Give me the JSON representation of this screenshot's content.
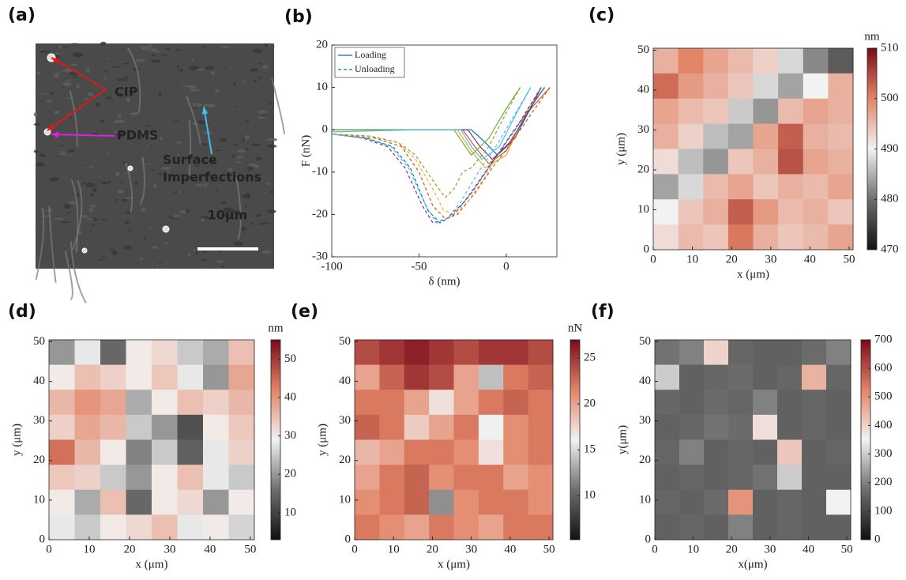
{
  "chart_data": [
    {
      "type": "image",
      "label": "(a)",
      "annotations": [
        {
          "text": "CIP",
          "color": "#e01818"
        },
        {
          "text": "PDMS",
          "color": "#e020e0"
        },
        {
          "text": "Surface",
          "color": "#3cc0f0"
        },
        {
          "text": "Imperfections",
          "color": "#3cc0f0"
        }
      ],
      "scale_bar": "10μm"
    },
    {
      "type": "line",
      "label": "(b)",
      "xlabel": "δ (nm)",
      "ylabel": "F (nN)",
      "xlim": [
        -100,
        29
      ],
      "ylim": [
        -30,
        20
      ],
      "xticks": [
        -100,
        -50,
        0
      ],
      "yticks": [
        -30,
        -20,
        -10,
        0,
        10,
        20
      ],
      "series": [
        {
          "name": "Loading",
          "dash": "solid",
          "curves": [
            {
              "color": "#0072BD",
              "x": [
                -100,
                -50,
                -20,
                -12,
                -5,
                5,
                15,
                22
              ],
              "y": [
                0,
                0,
                0,
                -3,
                -6,
                -2,
                6,
                10
              ]
            },
            {
              "color": "#D95319",
              "x": [
                -100,
                -50,
                -25,
                -18,
                -10,
                0,
                12,
                25
              ],
              "y": [
                0,
                0,
                0,
                -4,
                -8,
                -5,
                4,
                10
              ]
            },
            {
              "color": "#EDB120",
              "x": [
                -100,
                -50,
                -28,
                -20,
                -12,
                0,
                10,
                20
              ],
              "y": [
                0,
                0,
                0,
                -5,
                -9,
                -6,
                3,
                10
              ]
            },
            {
              "color": "#7E2F8E",
              "x": [
                -100,
                -50,
                -22,
                -15,
                -8,
                2,
                14,
                20
              ],
              "y": [
                0,
                0,
                0,
                -4,
                -7,
                -3,
                5,
                10
              ]
            },
            {
              "color": "#77AC30",
              "x": [
                -100,
                -50,
                -30,
                -25,
                -20,
                -10,
                0,
                8
              ],
              "y": [
                0,
                0,
                0,
                -3,
                -6,
                -2,
                5,
                10
              ]
            },
            {
              "color": "#4DBEEE",
              "x": [
                -100,
                -50,
                -26,
                -20,
                -14,
                -4,
                6,
                14
              ],
              "y": [
                -0.5,
                0,
                0,
                -4,
                -7,
                -4,
                4,
                10
              ]
            }
          ]
        },
        {
          "name": "Unloading",
          "dash": "dashed",
          "curves": [
            {
              "color": "#0072BD",
              "x": [
                22,
                10,
                0,
                -10,
                -20,
                -30,
                -38,
                -45,
                -55,
                -65,
                -80,
                -100
              ],
              "y": [
                10,
                3,
                -3,
                -9,
                -15,
                -20,
                -22,
                -19,
                -9,
                -4,
                -2,
                -1
              ]
            },
            {
              "color": "#D95319",
              "x": [
                25,
                13,
                3,
                -8,
                -18,
                -28,
                -35,
                -42,
                -50,
                -60,
                -75,
                -100
              ],
              "y": [
                10,
                3,
                -3,
                -9,
                -15,
                -20,
                -21,
                -18,
                -10,
                -4,
                -2,
                -1
              ]
            },
            {
              "color": "#EDB120",
              "x": [
                20,
                8,
                -2,
                -12,
                -22,
                -30,
                -36,
                -42,
                -52,
                -62,
                -78,
                -100
              ],
              "y": [
                10,
                2,
                -4,
                -11,
                -17,
                -20,
                -19,
                -14,
                -7,
                -3,
                -1.5,
                -1
              ]
            },
            {
              "color": "#7E2F8E",
              "x": [
                20,
                8,
                -2,
                -12,
                -24,
                -34,
                -42,
                -48,
                -58,
                -68,
                -82,
                -100
              ],
              "y": [
                10,
                2,
                -4,
                -10,
                -17,
                -21,
                -22,
                -18,
                -9,
                -4,
                -2,
                -1
              ]
            },
            {
              "color": "#77AC30",
              "x": [
                8,
                0,
                -10,
                -20,
                -25,
                -30,
                -35,
                -42,
                -52,
                -62,
                -78,
                -100
              ],
              "y": [
                10,
                4,
                -4,
                -9,
                -10,
                -14,
                -16,
                -12,
                -6,
                -3,
                -1.5,
                -1
              ]
            },
            {
              "color": "#4DBEEE",
              "x": [
                14,
                4,
                -6,
                -16,
                -26,
                -34,
                -40,
                -46,
                -56,
                -66,
                -80,
                -100
              ],
              "y": [
                10,
                3,
                -4,
                -10,
                -17,
                -21,
                -22,
                -18,
                -9,
                -4,
                -2,
                -1
              ]
            }
          ]
        }
      ]
    },
    {
      "type": "heatmap",
      "label": "(c)",
      "xlabel": "x (μm)",
      "ylabel": "y (μm)",
      "unit": "nm",
      "xlim": [
        0,
        51
      ],
      "ylim": [
        0,
        50.5
      ],
      "xticks": [
        0,
        10,
        20,
        30,
        40,
        50
      ],
      "yticks": [
        0,
        10,
        20,
        30,
        40,
        50
      ],
      "clim": [
        470,
        510
      ],
      "cticks": [
        470,
        480,
        490,
        500,
        510
      ],
      "values": [
        [
          496,
          500,
          497,
          495,
          493,
          488,
          482,
          478
        ],
        [
          502,
          498,
          496,
          494,
          488,
          484,
          490,
          496
        ],
        [
          497,
          495,
          494,
          487,
          483,
          495,
          497,
          496
        ],
        [
          496,
          493,
          486,
          484,
          497,
          503,
          496,
          495
        ],
        [
          492,
          486,
          483,
          494,
          496,
          504,
          497,
          496
        ],
        [
          484,
          488,
          495,
          497,
          494,
          496,
          495,
          497
        ],
        [
          490,
          494,
          496,
          503,
          498,
          495,
          496,
          494
        ],
        [
          492,
          495,
          494,
          501,
          496,
          494,
          495,
          497
        ]
      ]
    },
    {
      "type": "heatmap",
      "label": "(d)",
      "xlabel": "x (μm)",
      "ylabel": "y (μm)",
      "unit": "nm",
      "xlim": [
        0,
        51
      ],
      "ylim": [
        0,
        50.5
      ],
      "xticks": [
        0,
        10,
        20,
        30,
        40,
        50
      ],
      "yticks": [
        0,
        10,
        20,
        30,
        40,
        50
      ],
      "clim": [
        3,
        55
      ],
      "cticks": [
        10,
        20,
        30,
        40,
        50
      ],
      "values": [
        [
          20,
          28,
          15,
          30,
          32,
          25,
          22,
          35
        ],
        [
          30,
          35,
          33,
          30,
          34,
          28,
          20,
          38
        ],
        [
          36,
          40,
          38,
          22,
          30,
          35,
          33,
          36
        ],
        [
          33,
          38,
          36,
          25,
          20,
          12,
          30,
          34
        ],
        [
          44,
          36,
          30,
          18,
          25,
          14,
          28,
          33
        ],
        [
          34,
          33,
          25,
          20,
          30,
          35,
          28,
          25
        ],
        [
          30,
          22,
          35,
          15,
          30,
          32,
          20,
          30
        ],
        [
          28,
          25,
          30,
          32,
          35,
          28,
          30,
          26
        ]
      ]
    },
    {
      "type": "heatmap",
      "label": "(e)",
      "xlabel": "x (μm)",
      "ylabel": "y (μm)",
      "unit": "nN",
      "xlim": [
        0,
        51
      ],
      "ylim": [
        0,
        50.5
      ],
      "xticks": [
        0,
        10,
        20,
        30,
        40,
        50
      ],
      "yticks": [
        0,
        10,
        20,
        30,
        40,
        50
      ],
      "clim": [
        5.2,
        27
      ],
      "cticks": [
        10,
        15,
        20,
        25
      ],
      "values": [
        [
          24,
          25,
          26,
          25,
          24,
          25,
          25,
          24
        ],
        [
          20,
          23,
          25,
          24,
          20,
          14,
          22,
          23
        ],
        [
          22,
          22,
          20,
          17,
          20,
          22,
          23,
          22
        ],
        [
          23,
          22,
          18,
          20,
          22,
          16,
          21,
          22
        ],
        [
          19,
          20,
          22,
          22,
          21,
          17,
          21,
          22
        ],
        [
          20,
          22,
          23,
          21,
          22,
          22,
          20,
          21
        ],
        [
          21,
          22,
          23,
          12,
          21,
          22,
          22,
          21
        ],
        [
          22,
          21,
          20,
          22,
          21,
          20,
          22,
          22
        ]
      ]
    },
    {
      "type": "heatmap",
      "label": "(f)",
      "xlabel": "x(μm)",
      "ylabel": "y(μm)",
      "xlim": [
        0,
        51
      ],
      "ylim": [
        0,
        50.5
      ],
      "xticks": [
        0,
        10,
        20,
        30,
        40,
        50
      ],
      "yticks": [
        0,
        10,
        20,
        30,
        40,
        50
      ],
      "clim": [
        0,
        700
      ],
      "cticks": [
        0,
        100,
        200,
        300,
        400,
        500,
        600,
        700
      ],
      "values": [
        [
          180,
          200,
          400,
          160,
          150,
          150,
          170,
          200
        ],
        [
          300,
          150,
          160,
          170,
          150,
          160,
          450,
          160
        ],
        [
          160,
          150,
          170,
          160,
          200,
          150,
          160,
          150
        ],
        [
          150,
          160,
          180,
          170,
          380,
          150,
          160,
          150
        ],
        [
          160,
          200,
          150,
          160,
          150,
          420,
          150,
          160
        ],
        [
          150,
          160,
          150,
          160,
          180,
          300,
          150,
          150
        ],
        [
          160,
          150,
          170,
          500,
          150,
          160,
          150,
          350
        ],
        [
          150,
          160,
          150,
          200,
          150,
          160,
          150,
          150
        ]
      ]
    }
  ]
}
